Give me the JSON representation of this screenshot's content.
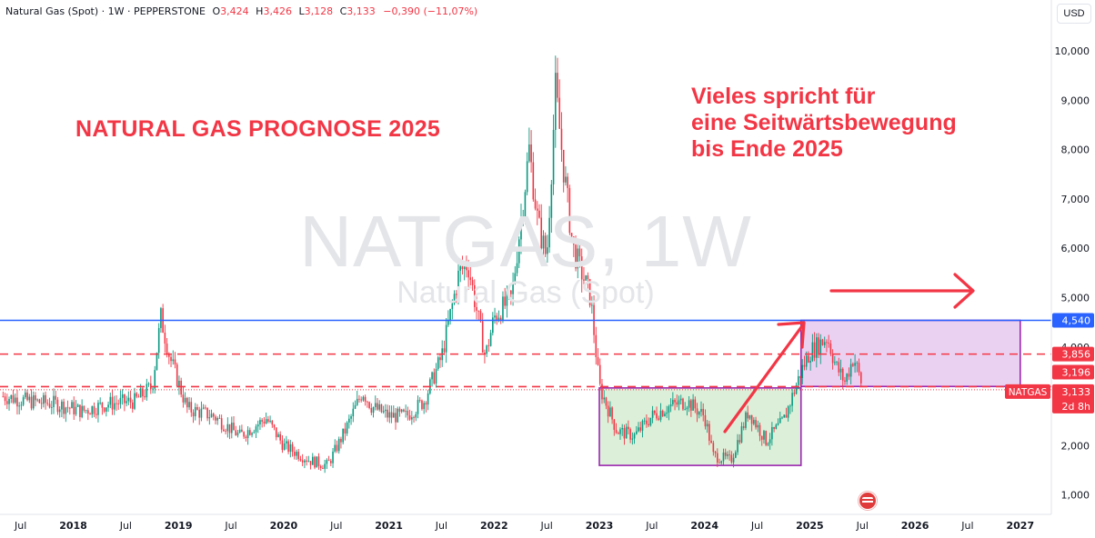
{
  "header": {
    "symbol_line": "Natural Gas (Spot) · 1W · PEPPERSTONE",
    "o_label": "O",
    "o_value": "3,424",
    "h_label": "H",
    "h_value": "3,426",
    "l_label": "L",
    "l_value": "3,128",
    "c_label": "C",
    "c_value": "3,133",
    "change": "−0,390 (−11,07%)"
  },
  "currency": "USD",
  "watermark": {
    "ticker": "NATGAS, 1W",
    "name": "Natural Gas (Spot)"
  },
  "annotations": {
    "title": "NATURAL GAS PROGNOSE 2025",
    "note": "Vieles spricht für\neine Seitwärtsbewegung\nbis Ende 2025"
  },
  "colors": {
    "up": "#089981",
    "down": "#f23645",
    "resistance": "#2962ff",
    "dashed": "#f23645",
    "box_low": "#d6ecd2",
    "box_high": "#e8c9ee",
    "box_border": "#9c27b0",
    "arrow": "#f23645"
  },
  "chart_data": {
    "type": "candlestick",
    "title": "",
    "x_axis_ticks": [
      "Jul",
      "2018",
      "Jul",
      "2019",
      "Jul",
      "2020",
      "Jul",
      "2021",
      "Jul",
      "2022",
      "Jul",
      "2023",
      "Jul",
      "2024",
      "Jul",
      "2025",
      "Jul",
      "2026",
      "Jul",
      "2027"
    ],
    "y_axis_ticks": [
      "1,000",
      "2,000",
      "3,000",
      "4,000",
      "5,000",
      "6,000",
      "7,000",
      "8,000",
      "9,000",
      "10,000"
    ],
    "ylim": [
      0.4,
      10.65
    ],
    "price_tags": [
      {
        "label": "4,540",
        "value": 4.54,
        "color": "#2962ff"
      },
      {
        "label": "3,856",
        "value": 3.856,
        "color": "#f23645"
      },
      {
        "label": "3,196",
        "value": 3.196,
        "color": "#f23645"
      },
      {
        "label": "3,133",
        "value": 3.133,
        "color": "#f23645",
        "symbol": "NATGAS",
        "countdown": "2d 8h"
      }
    ],
    "horizontal_lines": [
      {
        "value": 4.54,
        "style": "solid",
        "color": "#2962ff"
      },
      {
        "value": 3.856,
        "style": "dashed",
        "color": "#f23645"
      },
      {
        "value": 3.196,
        "style": "dashed",
        "color": "#f23645"
      },
      {
        "value": 3.133,
        "style": "dotted",
        "color": "#f23645"
      }
    ],
    "ranges": [
      {
        "name": "range-2023-2024",
        "x_start": "2023-01",
        "x_end": "2024-12",
        "y_low": 1.6,
        "y_high": 3.17
      },
      {
        "name": "range-2025",
        "x_start": "2024-12",
        "x_end": "2027-01",
        "y_low": 3.2,
        "y_high": 4.54
      }
    ],
    "price_path": [
      [
        "2017-05",
        3.0
      ],
      [
        "2017-08",
        2.9
      ],
      [
        "2017-11",
        2.85
      ],
      [
        "2018-02",
        2.7
      ],
      [
        "2018-05",
        2.85
      ],
      [
        "2018-08",
        2.9
      ],
      [
        "2018-10",
        3.2
      ],
      [
        "2018-11",
        4.6
      ],
      [
        "2018-12",
        3.8
      ],
      [
        "2019-02",
        2.75
      ],
      [
        "2019-05",
        2.6
      ],
      [
        "2019-08",
        2.2
      ],
      [
        "2019-11",
        2.55
      ],
      [
        "2020-01",
        2.0
      ],
      [
        "2020-04",
        1.7
      ],
      [
        "2020-06",
        1.6
      ],
      [
        "2020-08",
        2.3
      ],
      [
        "2020-10",
        3.1
      ],
      [
        "2020-11",
        2.8
      ],
      [
        "2021-01",
        2.6
      ],
      [
        "2021-03",
        2.6
      ],
      [
        "2021-05",
        2.9
      ],
      [
        "2021-07",
        3.8
      ],
      [
        "2021-09",
        5.5
      ],
      [
        "2021-10",
        5.7
      ],
      [
        "2021-12",
        3.8
      ],
      [
        "2022-01",
        4.6
      ],
      [
        "2022-03",
        5.0
      ],
      [
        "2022-05",
        8.0
      ],
      [
        "2022-06",
        6.5
      ],
      [
        "2022-07",
        5.8
      ],
      [
        "2022-08",
        9.2
      ],
      [
        "2022-09",
        7.5
      ],
      [
        "2022-10",
        6.0
      ],
      [
        "2022-12",
        5.0
      ],
      [
        "2023-01",
        3.2
      ],
      [
        "2023-03",
        2.3
      ],
      [
        "2023-05",
        2.2
      ],
      [
        "2023-07",
        2.6
      ],
      [
        "2023-09",
        2.8
      ],
      [
        "2023-11",
        2.9
      ],
      [
        "2024-01",
        2.6
      ],
      [
        "2024-02",
        1.8
      ],
      [
        "2024-04",
        1.7
      ],
      [
        "2024-06",
        2.7
      ],
      [
        "2024-08",
        2.1
      ],
      [
        "2024-10",
        2.5
      ],
      [
        "2024-12",
        3.5
      ],
      [
        "2025-01",
        3.9
      ],
      [
        "2025-03",
        4.2
      ],
      [
        "2025-04",
        3.6
      ],
      [
        "2025-05",
        3.3
      ],
      [
        "2025-06",
        3.8
      ],
      [
        "2025-07",
        3.2
      ]
    ]
  }
}
